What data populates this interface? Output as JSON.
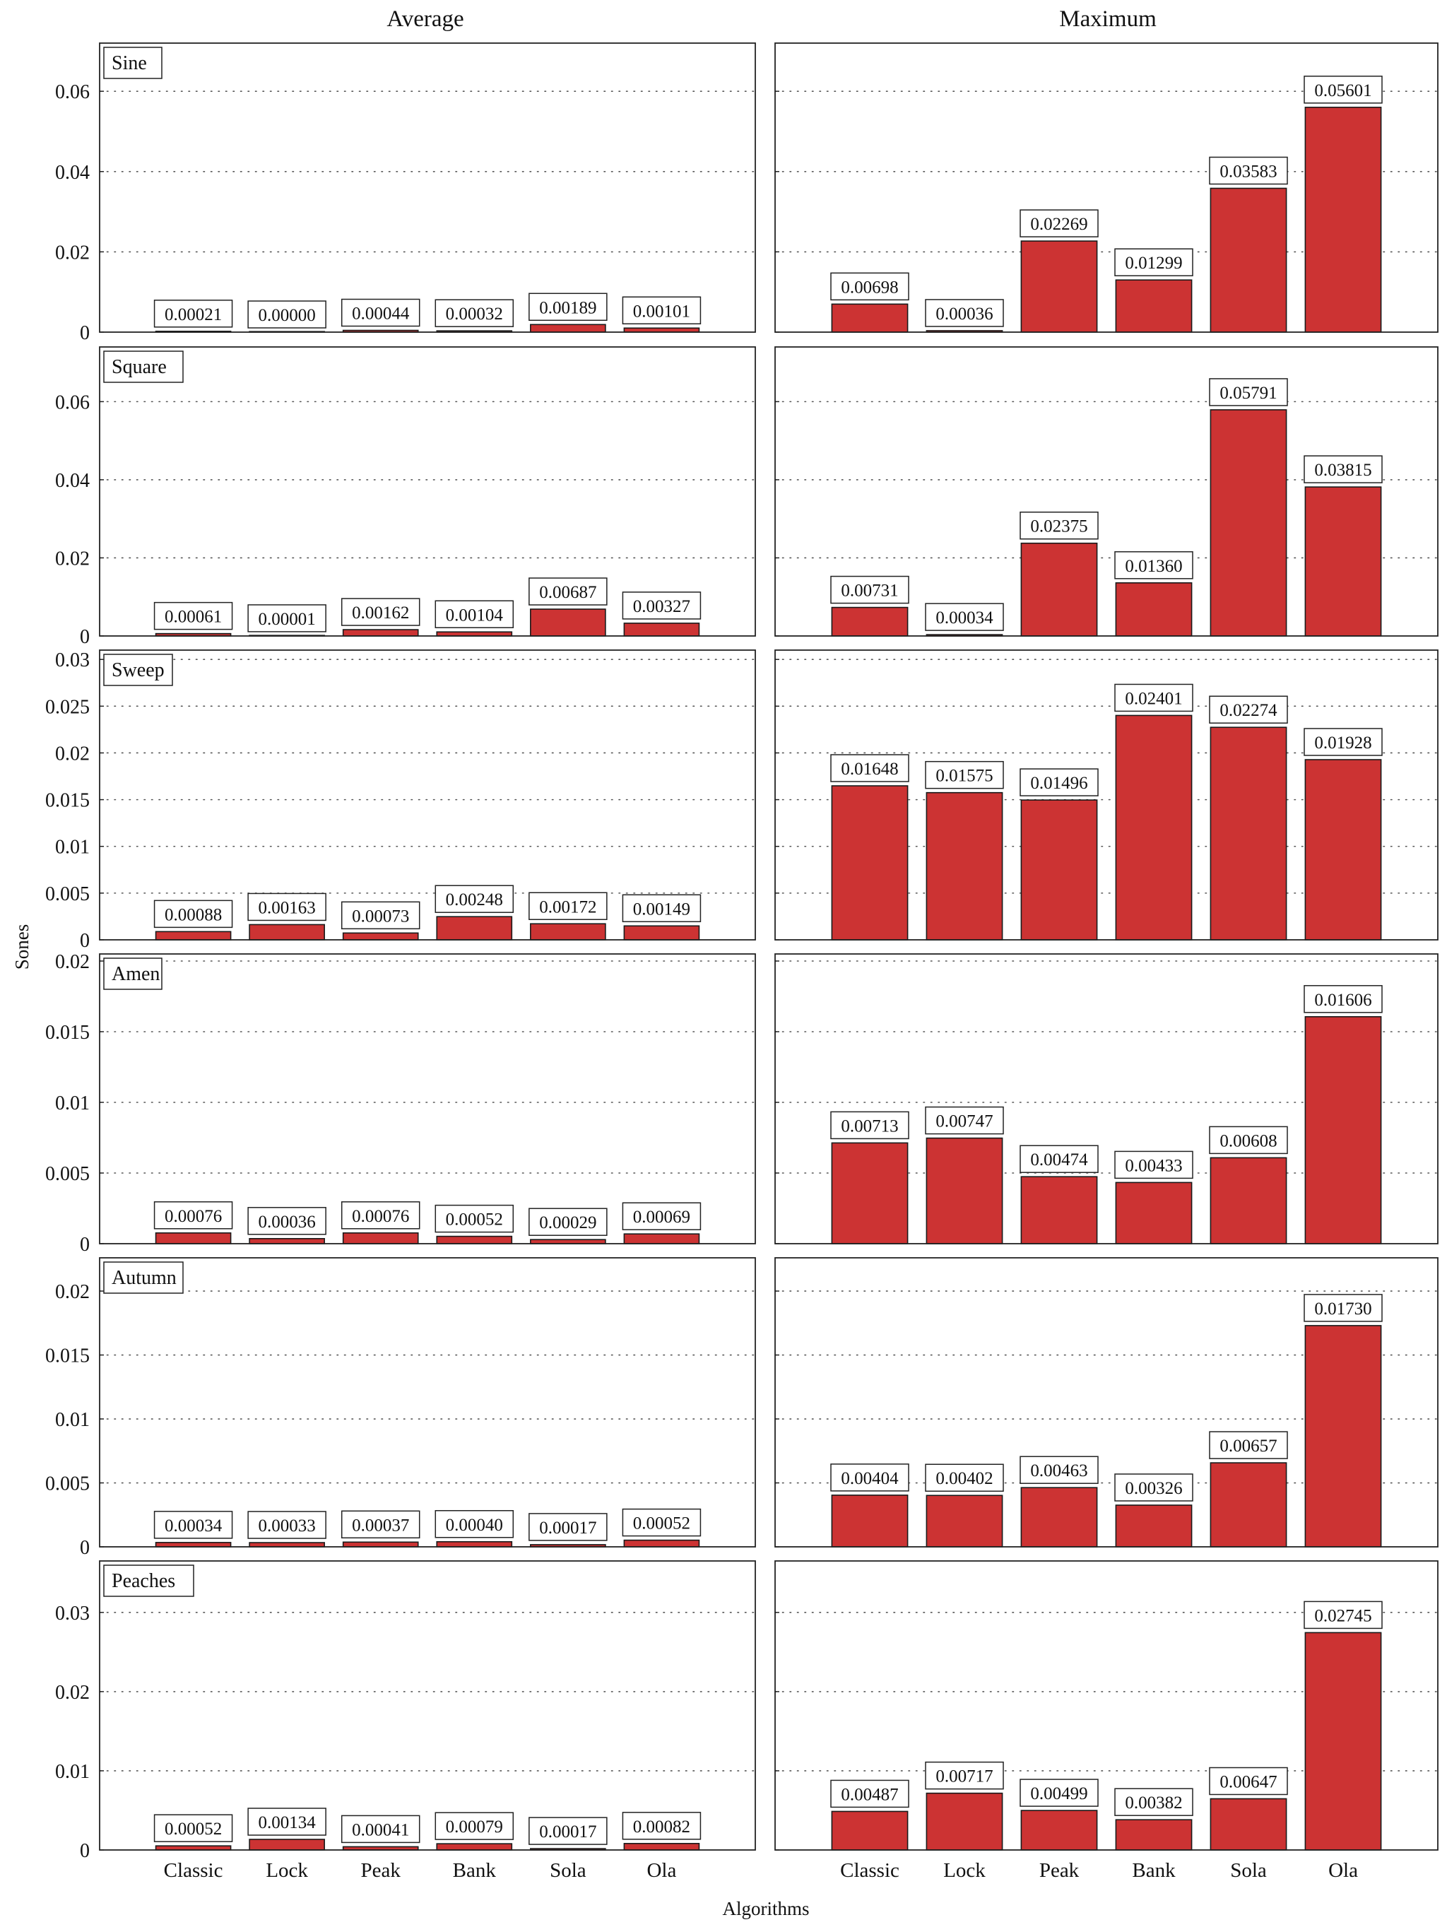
{
  "figure": {
    "columns": [
      "Average",
      "Maximum"
    ],
    "xlabel": "Algorithms",
    "ylabel": "Sones",
    "bar_color": "#cc3333",
    "bar_edge_color": "#1a1a1a"
  },
  "chart_data": [
    {
      "type": "bar",
      "label": "Sine",
      "stat": "Average",
      "categories": [
        "Classic",
        "Lock",
        "Peak",
        "Bank",
        "Sola",
        "Ola"
      ],
      "values": [
        0.00021,
        0.0,
        0.00044,
        0.00032,
        0.00189,
        0.00101
      ],
      "value_labels": [
        "0.00021",
        "0.00000",
        "0.00044",
        "0.00032",
        "0.00189",
        "0.00101"
      ],
      "ylim": [
        0,
        0.072
      ],
      "yticks": [
        0,
        0.02,
        0.04,
        0.06
      ],
      "ytick_labels": [
        "0",
        "0.02",
        "0.04",
        "0.06"
      ],
      "grid": "horizontal-dotted"
    },
    {
      "type": "bar",
      "label": "Sine",
      "stat": "Maximum",
      "categories": [
        "Classic",
        "Lock",
        "Peak",
        "Bank",
        "Sola",
        "Ola"
      ],
      "values": [
        0.00698,
        0.00036,
        0.02269,
        0.01299,
        0.03583,
        0.05601
      ],
      "value_labels": [
        "0.00698",
        "0.00036",
        "0.02269",
        "0.01299",
        "0.03583",
        "0.05601"
      ],
      "ylim": [
        0,
        0.072
      ],
      "yticks": [
        0,
        0.02,
        0.04,
        0.06
      ],
      "grid": "horizontal-dotted"
    },
    {
      "type": "bar",
      "label": "Square",
      "stat": "Average",
      "categories": [
        "Classic",
        "Lock",
        "Peak",
        "Bank",
        "Sola",
        "Ola"
      ],
      "values": [
        0.00061,
        1e-05,
        0.00162,
        0.00104,
        0.00687,
        0.00327
      ],
      "value_labels": [
        "0.00061",
        "0.00001",
        "0.00162",
        "0.00104",
        "0.00687",
        "0.00327"
      ],
      "ylim": [
        0,
        0.074
      ],
      "yticks": [
        0,
        0.02,
        0.04,
        0.06
      ],
      "ytick_labels": [
        "0",
        "0.02",
        "0.04",
        "0.06"
      ],
      "grid": "horizontal-dotted"
    },
    {
      "type": "bar",
      "label": "Square",
      "stat": "Maximum",
      "categories": [
        "Classic",
        "Lock",
        "Peak",
        "Bank",
        "Sola",
        "Ola"
      ],
      "values": [
        0.00731,
        0.00034,
        0.02375,
        0.0136,
        0.05791,
        0.03815
      ],
      "value_labels": [
        "0.00731",
        "0.00034",
        "0.02375",
        "0.01360",
        "0.05791",
        "0.03815"
      ],
      "ylim": [
        0,
        0.074
      ],
      "yticks": [
        0,
        0.02,
        0.04,
        0.06
      ],
      "grid": "horizontal-dotted"
    },
    {
      "type": "bar",
      "label": "Sweep",
      "stat": "Average",
      "categories": [
        "Classic",
        "Lock",
        "Peak",
        "Bank",
        "Sola",
        "Ola"
      ],
      "values": [
        0.00088,
        0.00163,
        0.00073,
        0.00248,
        0.00172,
        0.00149
      ],
      "value_labels": [
        "0.00088",
        "0.00163",
        "0.00073",
        "0.00248",
        "0.00172",
        "0.00149"
      ],
      "ylim": [
        0,
        0.031
      ],
      "yticks": [
        0,
        0.005,
        0.01,
        0.015,
        0.02,
        0.025,
        0.03
      ],
      "ytick_labels": [
        "0",
        "0.005",
        "0.01",
        "0.015",
        "0.02",
        "0.025",
        "0.03"
      ],
      "grid": "horizontal-dotted"
    },
    {
      "type": "bar",
      "label": "Sweep",
      "stat": "Maximum",
      "categories": [
        "Classic",
        "Lock",
        "Peak",
        "Bank",
        "Sola",
        "Ola"
      ],
      "values": [
        0.01648,
        0.01575,
        0.01496,
        0.02401,
        0.02274,
        0.01928
      ],
      "value_labels": [
        "0.01648",
        "0.01575",
        "0.01496",
        "0.02401",
        "0.02274",
        "0.01928"
      ],
      "ylim": [
        0,
        0.031
      ],
      "yticks": [
        0,
        0.005,
        0.01,
        0.015,
        0.02,
        0.025,
        0.03
      ],
      "grid": "horizontal-dotted"
    },
    {
      "type": "bar",
      "label": "Amen",
      "stat": "Average",
      "categories": [
        "Classic",
        "Lock",
        "Peak",
        "Bank",
        "Sola",
        "Ola"
      ],
      "values": [
        0.00076,
        0.00036,
        0.00076,
        0.00052,
        0.00029,
        0.00069
      ],
      "value_labels": [
        "0.00076",
        "0.00036",
        "0.00076",
        "0.00052",
        "0.00029",
        "0.00069"
      ],
      "ylim": [
        0,
        0.0205
      ],
      "yticks": [
        0,
        0.005,
        0.01,
        0.015,
        0.02
      ],
      "ytick_labels": [
        "0",
        "0.005",
        "0.01",
        "0.015",
        "0.02"
      ],
      "grid": "horizontal-dotted"
    },
    {
      "type": "bar",
      "label": "Amen",
      "stat": "Maximum",
      "categories": [
        "Classic",
        "Lock",
        "Peak",
        "Bank",
        "Sola",
        "Ola"
      ],
      "values": [
        0.00713,
        0.00747,
        0.00474,
        0.00433,
        0.00608,
        0.01606
      ],
      "value_labels": [
        "0.00713",
        "0.00747",
        "0.00474",
        "0.00433",
        "0.00608",
        "0.01606"
      ],
      "ylim": [
        0,
        0.0205
      ],
      "yticks": [
        0,
        0.005,
        0.01,
        0.015,
        0.02
      ],
      "grid": "horizontal-dotted"
    },
    {
      "type": "bar",
      "label": "Autumn",
      "stat": "Average",
      "categories": [
        "Classic",
        "Lock",
        "Peak",
        "Bank",
        "Sola",
        "Ola"
      ],
      "values": [
        0.00034,
        0.00033,
        0.00037,
        0.0004,
        0.00017,
        0.00052
      ],
      "value_labels": [
        "0.00034",
        "0.00033",
        "0.00037",
        "0.00040",
        "0.00017",
        "0.00052"
      ],
      "ylim": [
        0,
        0.0226
      ],
      "yticks": [
        0,
        0.005,
        0.01,
        0.015,
        0.02
      ],
      "ytick_labels": [
        "0",
        "0.005",
        "0.01",
        "0.015",
        "0.02"
      ],
      "grid": "horizontal-dotted"
    },
    {
      "type": "bar",
      "label": "Autumn",
      "stat": "Maximum",
      "categories": [
        "Classic",
        "Lock",
        "Peak",
        "Bank",
        "Sola",
        "Ola"
      ],
      "values": [
        0.00404,
        0.00402,
        0.00463,
        0.00326,
        0.00657,
        0.0173
      ],
      "value_labels": [
        "0.00404",
        "0.00402",
        "0.00463",
        "0.00326",
        "0.00657",
        "0.01730"
      ],
      "ylim": [
        0,
        0.0226
      ],
      "yticks": [
        0,
        0.005,
        0.01,
        0.015,
        0.02
      ],
      "grid": "horizontal-dotted"
    },
    {
      "type": "bar",
      "label": "Peaches",
      "stat": "Average",
      "categories": [
        "Classic",
        "Lock",
        "Peak",
        "Bank",
        "Sola",
        "Ola"
      ],
      "values": [
        0.00052,
        0.00134,
        0.00041,
        0.00079,
        0.00017,
        0.00082
      ],
      "value_labels": [
        "0.00052",
        "0.00134",
        "0.00041",
        "0.00079",
        "0.00017",
        "0.00082"
      ],
      "ylim": [
        0,
        0.0365
      ],
      "yticks": [
        0,
        0.01,
        0.02,
        0.03
      ],
      "ytick_labels": [
        "0",
        "0.01",
        "0.02",
        "0.03"
      ],
      "grid": "horizontal-dotted"
    },
    {
      "type": "bar",
      "label": "Peaches",
      "stat": "Maximum",
      "categories": [
        "Classic",
        "Lock",
        "Peak",
        "Bank",
        "Sola",
        "Ola"
      ],
      "values": [
        0.00487,
        0.00717,
        0.00499,
        0.00382,
        0.00647,
        0.02745
      ],
      "value_labels": [
        "0.00487",
        "0.00717",
        "0.00499",
        "0.00382",
        "0.00647",
        "0.02745"
      ],
      "ylim": [
        0,
        0.0365
      ],
      "yticks": [
        0,
        0.01,
        0.02,
        0.03
      ],
      "grid": "horizontal-dotted"
    }
  ]
}
